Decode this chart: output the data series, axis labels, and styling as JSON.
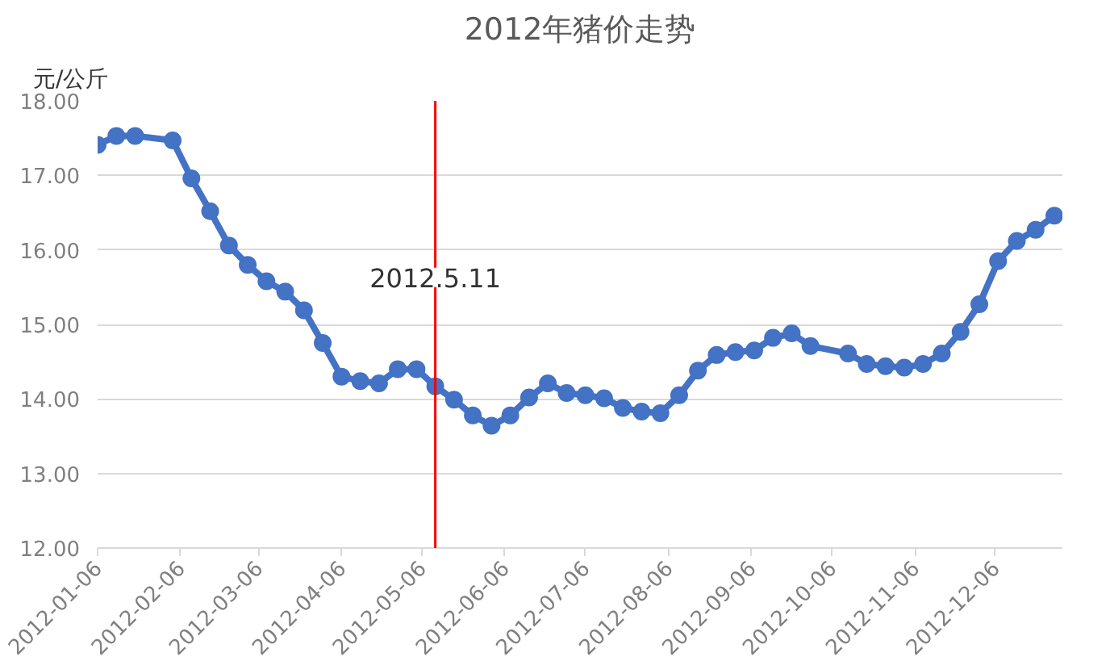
{
  "chart_data": {
    "type": "line",
    "title": "2012年猪价走势",
    "ylabel": "元/公斤",
    "x": [
      "2012-01-06",
      "2012-01-13",
      "2012-01-20",
      "2012-02-03",
      "2012-02-10",
      "2012-02-17",
      "2012-02-24",
      "2012-03-02",
      "2012-03-09",
      "2012-03-16",
      "2012-03-23",
      "2012-03-30",
      "2012-04-06",
      "2012-04-13",
      "2012-04-20",
      "2012-04-27",
      "2012-05-04",
      "2012-05-11",
      "2012-05-18",
      "2012-05-25",
      "2012-06-01",
      "2012-06-08",
      "2012-06-15",
      "2012-06-22",
      "2012-06-29",
      "2012-07-06",
      "2012-07-13",
      "2012-07-20",
      "2012-07-27",
      "2012-08-03",
      "2012-08-10",
      "2012-08-17",
      "2012-08-24",
      "2012-08-31",
      "2012-09-07",
      "2012-09-14",
      "2012-09-21",
      "2012-09-28",
      "2012-10-12",
      "2012-10-19",
      "2012-10-26",
      "2012-11-02",
      "2012-11-09",
      "2012-11-16",
      "2012-11-23",
      "2012-11-30",
      "2012-12-07",
      "2012-12-14",
      "2012-12-21",
      "2012-12-28"
    ],
    "series": [
      {
        "color": "#4472c4",
        "values": [
          17.41,
          17.53,
          17.53,
          17.47,
          16.96,
          16.52,
          16.06,
          15.8,
          15.58,
          15.44,
          15.19,
          14.75,
          14.3,
          14.24,
          14.21,
          14.4,
          14.4,
          14.17,
          13.99,
          13.78,
          13.64,
          13.78,
          14.02,
          14.21,
          14.08,
          14.05,
          14.01,
          13.88,
          13.83,
          13.81,
          14.05,
          14.38,
          14.59,
          14.63,
          14.65,
          14.82,
          14.88,
          14.71,
          14.61,
          14.47,
          14.44,
          14.42,
          14.47,
          14.61,
          14.9,
          15.27,
          15.85,
          16.12,
          16.27,
          16.46
        ]
      }
    ],
    "xlim": [
      "2012-01-06",
      "2012-12-31"
    ],
    "xticks": [
      {
        "value": "2012-01-06",
        "label": "2012-01-06"
      },
      {
        "value": "2012-02-06",
        "label": "2012-02-06"
      },
      {
        "value": "2012-03-06",
        "label": "2012-03-06"
      },
      {
        "value": "2012-04-06",
        "label": "2012-04-06"
      },
      {
        "value": "2012-05-06",
        "label": "2012-05-06"
      },
      {
        "value": "2012-06-06",
        "label": "2012-06-06"
      },
      {
        "value": "2012-07-06",
        "label": "2012-07-06"
      },
      {
        "value": "2012-08-06",
        "label": "2012-08-06"
      },
      {
        "value": "2012-09-06",
        "label": "2012-09-06"
      },
      {
        "value": "2012-10-06",
        "label": "2012-10-06"
      },
      {
        "value": "2012-11-06",
        "label": "2012-11-06"
      },
      {
        "value": "2012-12-06",
        "label": "2012-12-06"
      }
    ],
    "ylim": [
      12,
      18
    ],
    "yticks": [
      {
        "value": 12,
        "label": "12.00"
      },
      {
        "value": 13,
        "label": "13.00"
      },
      {
        "value": 14,
        "label": "14.00"
      },
      {
        "value": 15,
        "label": "15.00"
      },
      {
        "value": 16,
        "label": "16.00"
      },
      {
        "value": 17,
        "label": "17.00"
      },
      {
        "value": 18,
        "label": "18.00"
      }
    ],
    "ref_lines": [
      {
        "axis": "x",
        "value": "2012-05-11",
        "color": "#ff0000"
      }
    ],
    "annotations": [
      {
        "text": "2012.5.11",
        "x": "2012-05-11",
        "y": 15.5
      }
    ],
    "grid": "y",
    "marker": "circle",
    "line_style": "solid"
  }
}
